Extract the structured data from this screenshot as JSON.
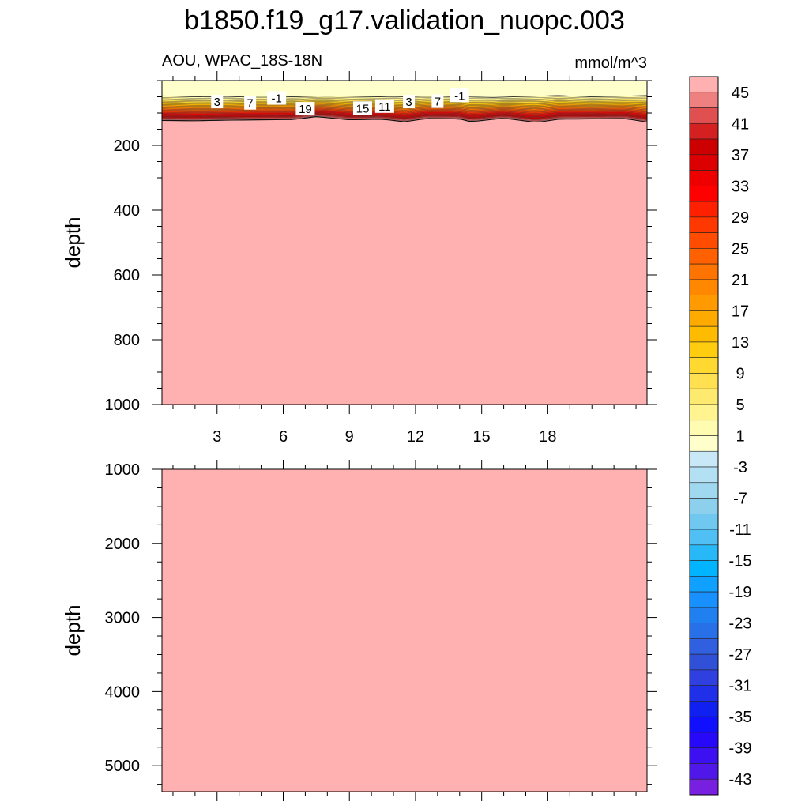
{
  "title": "b1850.f19_g17.validation_nuopc.003",
  "variable_label": "AOU, WPAC_18S-18N",
  "units_label": "mmol/m^3",
  "chart_data": [
    {
      "type": "heatmap",
      "panel": "upper",
      "ylabel": "depth",
      "ylim": [
        1000,
        0
      ],
      "xlim": [
        0.5,
        22.5
      ],
      "x_ticks": [
        3,
        6,
        9,
        12,
        15,
        18
      ],
      "y_ticks": [
        200,
        400,
        600,
        800,
        1000
      ],
      "background_value": 45,
      "surface_value": -2,
      "surface_depth": [
        50,
        50,
        50,
        50,
        50,
        50,
        50,
        50,
        50,
        50,
        50,
        50,
        50,
        50,
        50,
        50,
        50,
        50,
        50,
        50,
        50,
        50
      ],
      "surface_x": [
        0.5,
        2,
        3.5,
        5,
        6.5,
        8,
        9.5,
        11,
        12.5,
        14,
        15.5,
        17,
        18.5,
        20,
        21.5,
        22.5
      ],
      "surface_depth_profile": [
        47,
        50,
        51,
        48,
        50,
        47,
        49,
        51,
        48,
        50,
        52,
        49,
        46,
        50,
        48,
        46
      ],
      "max_gradient_x": [
        0.5,
        2,
        3.5,
        5,
        6.5,
        7.5,
        9,
        10.5,
        11.5,
        12.5,
        14,
        14.5,
        16,
        17.5,
        18.5,
        20,
        21.5,
        22.5
      ],
      "max_gradient_depth": [
        123,
        124,
        122,
        121,
        120,
        111,
        121,
        119,
        127,
        117,
        118,
        127,
        116,
        129,
        119,
        118,
        117,
        128
      ],
      "contour_labels": [
        {
          "text": "3",
          "x": 3.0,
          "depth": 66
        },
        {
          "text": "7",
          "x": 4.5,
          "depth": 70
        },
        {
          "text": "-1",
          "x": 5.7,
          "depth": 55
        },
        {
          "text": "19",
          "x": 7.0,
          "depth": 88
        },
        {
          "text": "15",
          "x": 9.6,
          "depth": 86
        },
        {
          "text": "11",
          "x": 10.6,
          "depth": 80
        },
        {
          "text": "3",
          "x": 11.7,
          "depth": 66
        },
        {
          "text": "7",
          "x": 13.0,
          "depth": 65
        },
        {
          "text": "-1",
          "x": 14.0,
          "depth": 47
        }
      ]
    },
    {
      "type": "heatmap",
      "panel": "lower",
      "ylabel": "depth",
      "ylim": [
        5350,
        1000
      ],
      "xlim": [
        0.5,
        22.5
      ],
      "x_ticks": [
        3,
        6,
        9,
        12,
        15,
        18
      ],
      "y_ticks": [
        1000,
        2000,
        3000,
        4000,
        5000
      ],
      "background_value": 45
    }
  ],
  "colorbar": {
    "levels": [
      45,
      43,
      41,
      39,
      37,
      35,
      33,
      31,
      29,
      27,
      25,
      23,
      21,
      19,
      17,
      15,
      13,
      11,
      9,
      7,
      5,
      3,
      1,
      -1,
      -3,
      -5,
      -7,
      -9,
      -11,
      -13,
      -15,
      -17,
      -19,
      -21,
      -23,
      -25,
      -27,
      -29,
      -31,
      -33,
      -35,
      -37,
      -39,
      -41,
      -43,
      -45
    ],
    "labels": [
      "45",
      "41",
      "37",
      "33",
      "29",
      "25",
      "21",
      "17",
      "13",
      "9",
      "5",
      "1",
      "-3",
      "-7",
      "-11",
      "-15",
      "-19",
      "-23",
      "-27",
      "-31",
      "-35",
      "-39",
      "-43"
    ],
    "colors": [
      "#ffb0b0",
      "#ee8080",
      "#e05050",
      "#d42020",
      "#cc0000",
      "#dd0000",
      "#ee0000",
      "#ff0000",
      "#ff2000",
      "#ff3800",
      "#ff4c00",
      "#ff6000",
      "#ff7400",
      "#ff8800",
      "#ff9a00",
      "#ffaa00",
      "#ffbb00",
      "#ffcc10",
      "#ffd830",
      "#ffe050",
      "#ffea70",
      "#fff490",
      "#fffbb0",
      "#ffffcc",
      "#c8e8f8",
      "#b4e0f4",
      "#a0d8f0",
      "#8cd0ee",
      "#70c8f0",
      "#50c0f4",
      "#28b8f8",
      "#00b4ff",
      "#10a0ff",
      "#1890ff",
      "#2080f0",
      "#2870e8",
      "#3060e0",
      "#3050d8",
      "#3040e0",
      "#2030e8",
      "#1020f0",
      "#1010ff",
      "#2808f8",
      "#3c10f0",
      "#5018e8",
      "#7820e0"
    ]
  }
}
